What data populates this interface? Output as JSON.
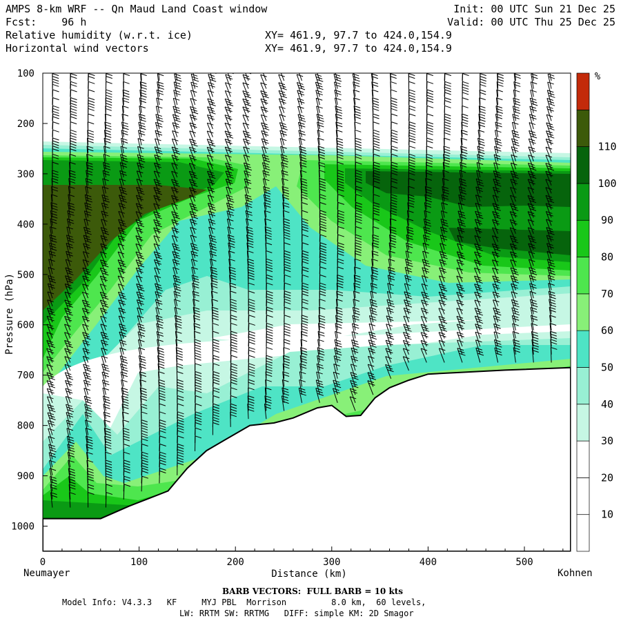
{
  "header": {
    "title": "AMPS 8-km WRF -- Qn Maud Land Coast window",
    "fcst": "Fcst:    96 h",
    "line3_left": "Relative humidity (w.r.t. ice)",
    "line4_left": "Horizontal wind vectors",
    "xy1": "XY= 461.9, 97.7 to 424.0,154.9",
    "xy2": "XY= 461.9, 97.7 to 424.0,154.9",
    "init": "Init: 00 UTC Sun 21 Dec 25",
    "valid": "Valid: 00 UTC Thu 25 Dec 25"
  },
  "footer": {
    "barb": "BARB VECTORS:  FULL BARB = 10 kts",
    "model": "Model Info: V4.3.3   KF     MYJ PBL  Morrison         8.0 km,  60 levels,",
    "model2": "LW: RRTM SW: RRTMG   DIFF: simple KM: 2D Smagor"
  },
  "endpoints": {
    "left": "Neumayer",
    "right": "Kohnen"
  },
  "colors": {
    "c20": "#ffffff",
    "c30": "#c6f7e4",
    "c40": "#98f0d4",
    "c50": "#4ee4c5",
    "c60": "#88f078",
    "c70": "#4ee64e",
    "c80": "#19c719",
    "c90": "#0a9a14",
    "c100": "#06640c",
    "c110": "#3c5a0a",
    "c120": "#c32a0a"
  },
  "chart_data": {
    "type": "heatmap",
    "title": "Relative humidity (w.r.t. ice)",
    "xlabel": "Distance (km)",
    "ylabel": "Pressure (hPa)",
    "xlim": [
      0,
      548
    ],
    "ylim": [
      1050,
      100
    ],
    "x_ticks": [
      0,
      100,
      200,
      300,
      400,
      500
    ],
    "y_ticks": [
      100,
      200,
      300,
      400,
      500,
      600,
      700,
      800,
      900,
      1000
    ],
    "colorbar": {
      "unit": "%",
      "levels": [
        10,
        20,
        30,
        40,
        50,
        60,
        70,
        80,
        90,
        100,
        110
      ],
      "colors": [
        "#ffffff",
        "#ffffff",
        "#ffffff",
        "#c6f7e4",
        "#98f0d4",
        "#4ee4c5",
        "#88f078",
        "#4ee64e",
        "#19c719",
        "#0a9a14",
        "#06640c",
        "#3c5a0a",
        "#c32a0a"
      ]
    },
    "terrain_surface": {
      "x_km": [
        0,
        60,
        90,
        110,
        130,
        150,
        170,
        195,
        215,
        240,
        260,
        285,
        300,
        315,
        330,
        345,
        360,
        380,
        400,
        430,
        480,
        548
      ],
      "p_hpa": [
        985,
        985,
        960,
        945,
        930,
        885,
        850,
        822,
        800,
        795,
        785,
        765,
        760,
        782,
        780,
        745,
        725,
        710,
        698,
        695,
        690,
        685
      ]
    },
    "wind_barb_full_kts": 10
  }
}
